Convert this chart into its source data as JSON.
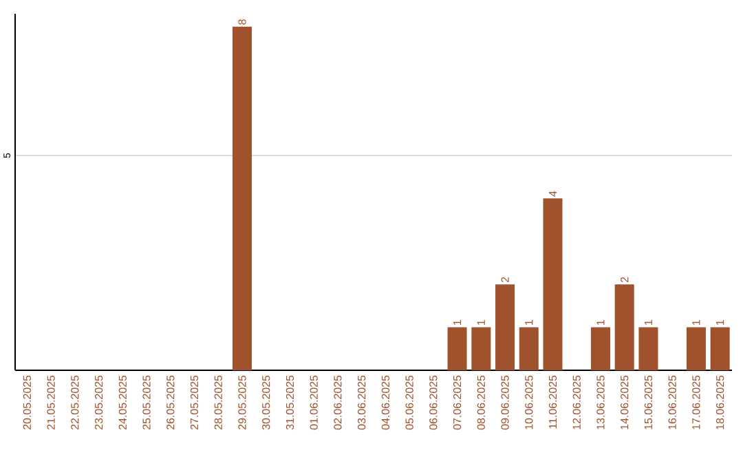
{
  "chart_data": {
    "type": "bar",
    "categories": [
      "20.05.2025",
      "21.05.2025",
      "22.05.2025",
      "23.05.2025",
      "24.05.2025",
      "25.05.2025",
      "26.05.2025",
      "27.05.2025",
      "28.05.2025",
      "29.05.2025",
      "30.05.2025",
      "31.05.2025",
      "01.06.2025",
      "02.06.2025",
      "03.06.2025",
      "04.06.2025",
      "05.06.2025",
      "06.06.2025",
      "07.06.2025",
      "08.06.2025",
      "09.06.2025",
      "10.06.2025",
      "11.06.2025",
      "12.06.2025",
      "13.06.2025",
      "14.06.2025",
      "15.06.2025",
      "16.06.2025",
      "17.06.2025",
      "18.06.2025"
    ],
    "values": [
      0,
      0,
      0,
      0,
      0,
      0,
      0,
      0,
      0,
      8,
      0,
      0,
      0,
      0,
      0,
      0,
      0,
      0,
      1,
      1,
      2,
      1,
      4,
      0,
      1,
      2,
      1,
      0,
      1,
      1
    ],
    "value_labels": [
      null,
      null,
      null,
      null,
      null,
      null,
      null,
      null,
      null,
      "8",
      null,
      null,
      null,
      null,
      null,
      null,
      null,
      null,
      "1",
      "1",
      "2",
      "1",
      "4",
      null,
      "1",
      "2",
      "1",
      null,
      "1",
      "1"
    ],
    "color": "#a0522d",
    "ylim": [
      0,
      8.3
    ],
    "yticks": [
      {
        "value": 0,
        "label": null
      },
      5
    ],
    "grid": "y"
  }
}
